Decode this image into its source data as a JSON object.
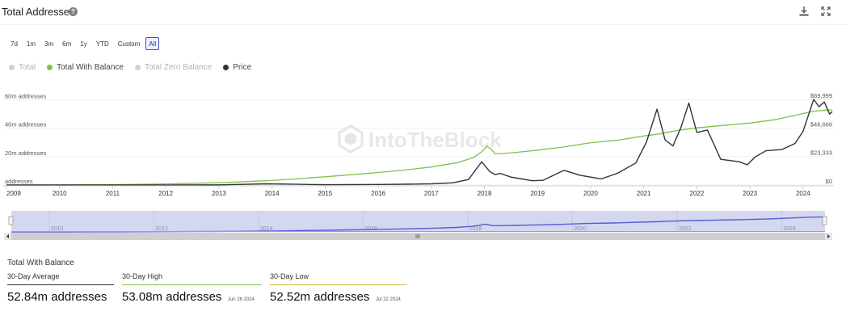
{
  "header": {
    "title": "Total Addresses",
    "help_icon": "question-circle-icon",
    "download_icon": "download-icon",
    "fullscreen_icon": "expand-icon"
  },
  "ranges": {
    "items": [
      "7d",
      "1m",
      "3m",
      "6m",
      "1y",
      "YTD",
      "Custom",
      "All"
    ],
    "active": "All"
  },
  "legend": [
    {
      "label": "Total",
      "color": "#cfd2d6",
      "active": false
    },
    {
      "label": "Total With Balance",
      "color": "#7dc24b",
      "active": true
    },
    {
      "label": "Total Zero Balance",
      "color": "#cfd2d6",
      "active": false
    },
    {
      "label": "Price",
      "color": "#333333",
      "active": true
    }
  ],
  "watermark": "IntoTheBlock",
  "chart_data": {
    "type": "line",
    "title": "Total Addresses",
    "x_labels": [
      "2009",
      "2010",
      "2011",
      "2012",
      "2013",
      "2014",
      "2015",
      "2016",
      "2017",
      "2018",
      "2019",
      "2020",
      "2021",
      "2022",
      "2023",
      "2024"
    ],
    "navigator_labels": [
      "2010",
      "2012",
      "2014",
      "2016",
      "2018",
      "2020",
      "2022",
      "2024"
    ],
    "left_axis": {
      "labels": [
        "60m addresses",
        "40m addresses",
        "20m addresses",
        "addresses"
      ],
      "values": [
        60,
        40,
        20,
        0
      ],
      "unit": "m addresses"
    },
    "right_axis": {
      "labels": [
        "$69,999",
        "$46,666",
        "$23,333",
        "$0"
      ],
      "values": [
        69999,
        46666,
        23333,
        0
      ]
    },
    "series": [
      {
        "name": "Total With Balance",
        "color": "#7dc24b",
        "axis": "left",
        "points": [
          [
            2009.0,
            0
          ],
          [
            2010.0,
            0.05
          ],
          [
            2011.0,
            0.3
          ],
          [
            2012.0,
            0.8
          ],
          [
            2013.0,
            1.6
          ],
          [
            2013.5,
            2.4
          ],
          [
            2014.0,
            3.2
          ],
          [
            2014.5,
            4.5
          ],
          [
            2015.0,
            5.8
          ],
          [
            2015.5,
            7.3
          ],
          [
            2016.0,
            8.8
          ],
          [
            2016.5,
            10.6
          ],
          [
            2017.0,
            12.7
          ],
          [
            2017.5,
            15.8
          ],
          [
            2017.8,
            19.5
          ],
          [
            2017.95,
            23.5
          ],
          [
            2018.05,
            27.3
          ],
          [
            2018.12,
            25.5
          ],
          [
            2018.2,
            22.0
          ],
          [
            2018.35,
            22.2
          ],
          [
            2018.6,
            23.0
          ],
          [
            2019.0,
            24.6
          ],
          [
            2019.5,
            26.8
          ],
          [
            2020.0,
            29.8
          ],
          [
            2020.5,
            31.5
          ],
          [
            2021.0,
            34.5
          ],
          [
            2021.3,
            36.0
          ],
          [
            2021.6,
            38.2
          ],
          [
            2022.0,
            40.3
          ],
          [
            2022.5,
            42.0
          ],
          [
            2023.0,
            43.6
          ],
          [
            2023.5,
            46.2
          ],
          [
            2023.9,
            49.5
          ],
          [
            2024.2,
            52.0
          ],
          [
            2024.45,
            52.8
          ],
          [
            2024.55,
            52.84
          ]
        ]
      },
      {
        "name": "Price",
        "color": "#333333",
        "axis": "right",
        "points": [
          [
            2009.0,
            0
          ],
          [
            2012.0,
            10
          ],
          [
            2013.0,
            120
          ],
          [
            2013.9,
            1000
          ],
          [
            2014.5,
            600
          ],
          [
            2015.0,
            250
          ],
          [
            2016.0,
            430
          ],
          [
            2016.5,
            650
          ],
          [
            2017.0,
            1000
          ],
          [
            2017.4,
            1800
          ],
          [
            2017.7,
            4500
          ],
          [
            2017.95,
            19000
          ],
          [
            2018.1,
            11000
          ],
          [
            2018.2,
            8500
          ],
          [
            2018.3,
            9500
          ],
          [
            2018.5,
            6500
          ],
          [
            2018.9,
            3500
          ],
          [
            2019.1,
            3800
          ],
          [
            2019.5,
            12000
          ],
          [
            2019.8,
            8000
          ],
          [
            2020.2,
            5000
          ],
          [
            2020.5,
            9500
          ],
          [
            2020.85,
            18000
          ],
          [
            2021.05,
            35000
          ],
          [
            2021.25,
            62000
          ],
          [
            2021.4,
            37000
          ],
          [
            2021.55,
            32000
          ],
          [
            2021.7,
            47000
          ],
          [
            2021.85,
            67000
          ],
          [
            2022.0,
            43000
          ],
          [
            2022.2,
            45000
          ],
          [
            2022.45,
            21000
          ],
          [
            2022.8,
            19000
          ],
          [
            2022.95,
            16500
          ],
          [
            2023.1,
            23000
          ],
          [
            2023.3,
            28000
          ],
          [
            2023.6,
            29000
          ],
          [
            2023.85,
            34000
          ],
          [
            2024.0,
            44000
          ],
          [
            2024.2,
            70000
          ],
          [
            2024.3,
            64000
          ],
          [
            2024.4,
            68000
          ],
          [
            2024.5,
            58000
          ],
          [
            2024.55,
            60000
          ]
        ]
      }
    ],
    "ylim_left": [
      0,
      62
    ],
    "ylim_right": [
      0,
      72000
    ],
    "xlim": [
      2009.0,
      2024.55
    ]
  },
  "stats": {
    "title": "Total With Balance",
    "items": [
      {
        "label": "30-Day Average",
        "value": "52.84m addresses",
        "date": "",
        "color": "#2a2f3a"
      },
      {
        "label": "30-Day High",
        "value": "53.08m addresses",
        "date": "Jun 26 2024",
        "color": "#7dc24b"
      },
      {
        "label": "30-Day Low",
        "value": "52.52m addresses",
        "date": "Jul 22 2024",
        "color": "#d9b32c"
      }
    ]
  }
}
